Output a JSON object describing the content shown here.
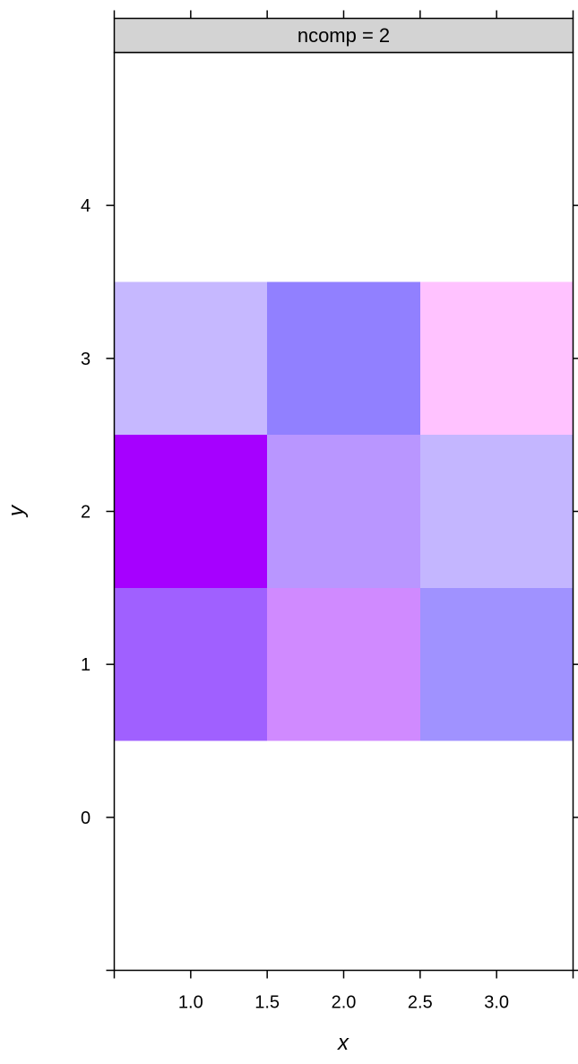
{
  "chart_data": {
    "type": "heatmap",
    "strip": {
      "label": "ncomp = 2",
      "color": "#d3d3d3"
    },
    "xlabel": "x",
    "ylabel": "y",
    "xlim": [
      0.5,
      3.5
    ],
    "ylim": [
      -1,
      5
    ],
    "xticks": [
      1.0,
      1.5,
      2.0,
      2.5,
      3.0
    ],
    "xtick_labels": [
      "1.0",
      "1.5",
      "2.0",
      "2.5",
      "3.0"
    ],
    "yticks": [
      0,
      1,
      2,
      3,
      4
    ],
    "ytick_labels": [
      "0",
      "1",
      "2",
      "3",
      "4"
    ],
    "x": [
      1,
      2,
      3
    ],
    "y": [
      1,
      2,
      3
    ],
    "cells": [
      {
        "x": 1,
        "y": 3,
        "color": "#c6b8ff"
      },
      {
        "x": 2,
        "y": 3,
        "color": "#9180ff"
      },
      {
        "x": 3,
        "y": 3,
        "color": "#ffc2ff"
      },
      {
        "x": 1,
        "y": 2,
        "color": "#a600ff"
      },
      {
        "x": 2,
        "y": 2,
        "color": "#b996ff"
      },
      {
        "x": 3,
        "y": 2,
        "color": "#c4b6ff"
      },
      {
        "x": 1,
        "y": 1,
        "color": "#a060ff"
      },
      {
        "x": 2,
        "y": 1,
        "color": "#d08aff"
      },
      {
        "x": 3,
        "y": 1,
        "color": "#a092ff"
      }
    ]
  }
}
